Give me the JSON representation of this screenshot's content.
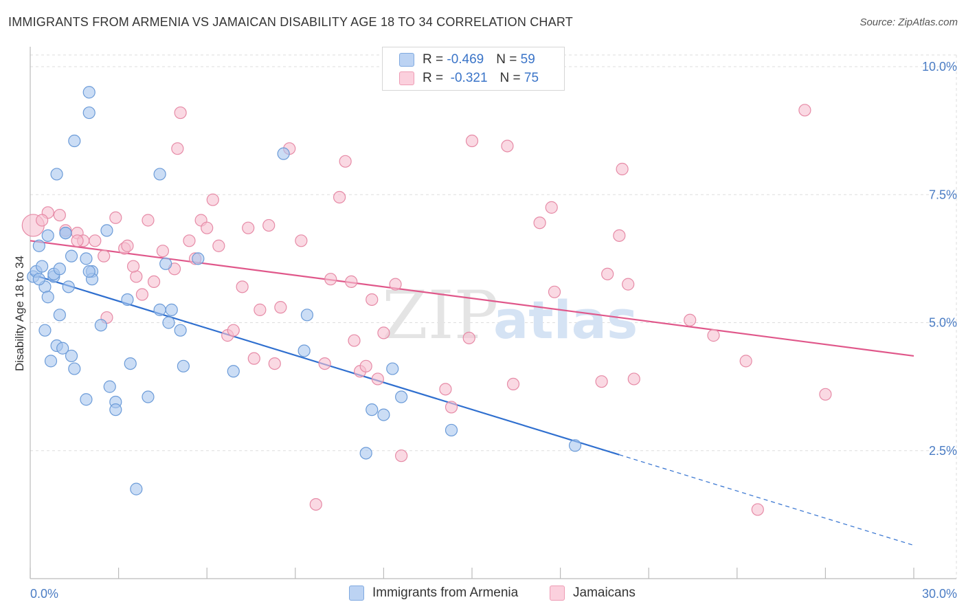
{
  "title": "IMMIGRANTS FROM ARMENIA VS JAMAICAN DISABILITY AGE 18 TO 34 CORRELATION CHART",
  "source": "Source: ZipAtlas.com",
  "watermark": {
    "zip": "ZIP",
    "atlas": "atlas"
  },
  "legend": {
    "rows": [
      {
        "r_label": "R = ",
        "r_value": "-0.469",
        "n_label": "N = ",
        "n_value": "59"
      },
      {
        "r_label": "R = ",
        "r_value": " -0.321",
        "n_label": "N = ",
        "n_value": "75"
      }
    ]
  },
  "chart_data": {
    "type": "scatter",
    "title": "IMMIGRANTS FROM ARMENIA VS JAMAICAN DISABILITY AGE 18 TO 34 CORRELATION CHART",
    "xlabel": "",
    "ylabel": "Disability Age 18 to 34",
    "xlim": [
      0,
      30
    ],
    "ylim": [
      0,
      10.5
    ],
    "x_tick_labels": [
      "0.0%",
      "30.0%"
    ],
    "y_ticks": [
      2.5,
      5.0,
      7.5,
      10.0
    ],
    "y_tick_labels": [
      "2.5%",
      "5.0%",
      "7.5%",
      "10.0%"
    ],
    "grid": true,
    "legend_position": "bottom",
    "series": [
      {
        "name": "Immigrants from Armenia",
        "color": "#a9c6ef",
        "stroke": "#6b9bd8",
        "trend_color": "#2f6fcf",
        "trend": {
          "x0": 0,
          "y0": 5.95,
          "x1": 20.0,
          "y1": 2.42,
          "dash_to_x": 30,
          "dash_to_y": 0.65
        },
        "points": [
          [
            0.1,
            5.9
          ],
          [
            0.2,
            6.0
          ],
          [
            0.4,
            6.1
          ],
          [
            0.5,
            5.7
          ],
          [
            0.6,
            5.5
          ],
          [
            0.3,
            6.5
          ],
          [
            0.6,
            6.7
          ],
          [
            0.8,
            5.9
          ],
          [
            0.8,
            5.95
          ],
          [
            1.2,
            6.75
          ],
          [
            1.4,
            6.3
          ],
          [
            1.9,
            6.25
          ],
          [
            2.1,
            6.0
          ],
          [
            2.1,
            5.85
          ],
          [
            0.5,
            4.85
          ],
          [
            0.7,
            4.25
          ],
          [
            0.9,
            4.55
          ],
          [
            1.0,
            5.15
          ],
          [
            1.3,
            5.7
          ],
          [
            1.4,
            4.35
          ],
          [
            1.5,
            4.1
          ],
          [
            2.4,
            4.95
          ],
          [
            2.6,
            6.8
          ],
          [
            2.7,
            3.75
          ],
          [
            1.1,
            4.5
          ],
          [
            1.9,
            3.5
          ],
          [
            2.9,
            3.45
          ],
          [
            2.9,
            3.3
          ],
          [
            3.3,
            5.45
          ],
          [
            3.4,
            4.2
          ],
          [
            4.0,
            3.55
          ],
          [
            4.4,
            5.25
          ],
          [
            4.6,
            6.15
          ],
          [
            4.7,
            5.0
          ],
          [
            4.8,
            5.25
          ],
          [
            5.1,
            4.85
          ],
          [
            5.2,
            4.15
          ],
          [
            5.7,
            6.25
          ],
          [
            6.9,
            4.05
          ],
          [
            8.6,
            8.3
          ],
          [
            9.3,
            4.45
          ],
          [
            9.4,
            5.15
          ],
          [
            11.4,
            2.45
          ],
          [
            11.6,
            3.3
          ],
          [
            12.0,
            3.2
          ],
          [
            12.3,
            4.1
          ],
          [
            12.6,
            3.55
          ],
          [
            14.3,
            2.9
          ],
          [
            18.5,
            2.6
          ],
          [
            3.6,
            1.75
          ],
          [
            1.5,
            8.55
          ],
          [
            2.0,
            9.1
          ],
          [
            2.0,
            9.5
          ],
          [
            0.9,
            7.9
          ],
          [
            4.4,
            7.9
          ],
          [
            1.2,
            6.75
          ],
          [
            0.3,
            5.85
          ],
          [
            1.0,
            6.05
          ],
          [
            2.0,
            6.0
          ]
        ]
      },
      {
        "name": "Jamaicans",
        "color": "#f6bfd0",
        "stroke": "#e68aa6",
        "trend_color": "#e0578a",
        "trend": {
          "x0": 0,
          "y0": 6.6,
          "x1": 30,
          "y1": 4.35
        },
        "points": [
          [
            0.1,
            6.9
          ],
          [
            0.6,
            7.15
          ],
          [
            1.0,
            7.1
          ],
          [
            1.2,
            6.8
          ],
          [
            1.6,
            6.75
          ],
          [
            1.8,
            6.6
          ],
          [
            2.2,
            6.6
          ],
          [
            2.5,
            6.3
          ],
          [
            2.6,
            5.1
          ],
          [
            2.9,
            7.05
          ],
          [
            3.2,
            6.45
          ],
          [
            3.3,
            6.5
          ],
          [
            3.6,
            5.9
          ],
          [
            3.8,
            5.55
          ],
          [
            4.0,
            7.0
          ],
          [
            4.2,
            5.8
          ],
          [
            4.5,
            6.4
          ],
          [
            4.9,
            6.05
          ],
          [
            5.0,
            8.4
          ],
          [
            5.1,
            9.1
          ],
          [
            5.4,
            6.6
          ],
          [
            5.6,
            6.25
          ],
          [
            5.8,
            7.0
          ],
          [
            6.0,
            6.85
          ],
          [
            6.2,
            7.4
          ],
          [
            6.4,
            6.5
          ],
          [
            6.7,
            4.75
          ],
          [
            6.9,
            4.85
          ],
          [
            7.2,
            5.7
          ],
          [
            7.4,
            6.85
          ],
          [
            7.6,
            4.3
          ],
          [
            7.8,
            5.25
          ],
          [
            8.1,
            6.9
          ],
          [
            8.3,
            4.2
          ],
          [
            8.5,
            5.3
          ],
          [
            8.8,
            8.4
          ],
          [
            9.2,
            6.6
          ],
          [
            9.7,
            1.45
          ],
          [
            10.0,
            4.2
          ],
          [
            10.2,
            5.85
          ],
          [
            10.5,
            7.45
          ],
          [
            10.7,
            8.15
          ],
          [
            10.9,
            5.8
          ],
          [
            11.0,
            4.65
          ],
          [
            11.2,
            4.05
          ],
          [
            11.4,
            4.15
          ],
          [
            11.6,
            5.45
          ],
          [
            11.8,
            3.9
          ],
          [
            12.0,
            4.8
          ],
          [
            12.4,
            5.75
          ],
          [
            12.6,
            2.4
          ],
          [
            14.1,
            3.7
          ],
          [
            14.3,
            3.35
          ],
          [
            14.9,
            4.7
          ],
          [
            15.0,
            8.55
          ],
          [
            16.2,
            8.45
          ],
          [
            16.4,
            3.8
          ],
          [
            17.3,
            6.95
          ],
          [
            17.7,
            7.25
          ],
          [
            17.8,
            5.6
          ],
          [
            19.4,
            3.85
          ],
          [
            19.6,
            5.95
          ],
          [
            20.0,
            6.7
          ],
          [
            20.1,
            8.0
          ],
          [
            20.3,
            5.75
          ],
          [
            20.5,
            3.9
          ],
          [
            22.4,
            5.05
          ],
          [
            23.2,
            4.75
          ],
          [
            24.3,
            4.25
          ],
          [
            24.7,
            1.35
          ],
          [
            26.3,
            9.15
          ],
          [
            27.0,
            3.6
          ],
          [
            0.4,
            7.0
          ],
          [
            1.6,
            6.6
          ],
          [
            3.5,
            6.1
          ]
        ]
      }
    ]
  }
}
